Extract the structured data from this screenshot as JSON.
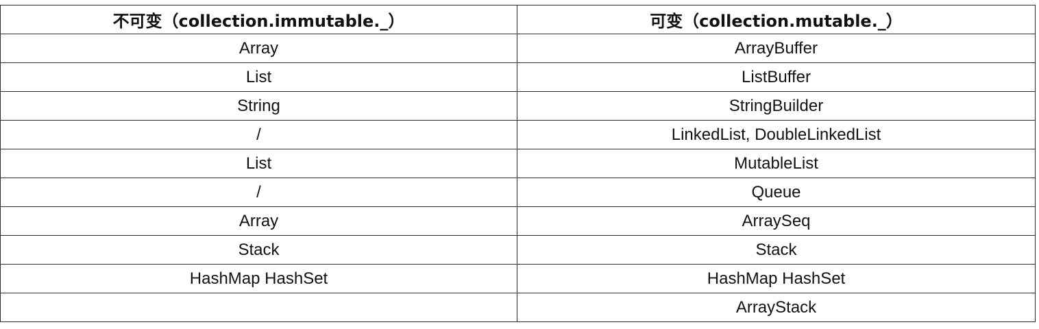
{
  "table": {
    "headers": [
      "不可变（collection.immutable._）",
      "可变（collection.mutable._）"
    ],
    "rows": [
      [
        "Array",
        "ArrayBuffer"
      ],
      [
        "List",
        "ListBuffer"
      ],
      [
        "String",
        "StringBuilder"
      ],
      [
        "/",
        "LinkedList, DoubleLinkedList"
      ],
      [
        "List",
        "MutableList"
      ],
      [
        "/",
        "Queue"
      ],
      [
        "Array",
        "ArraySeq"
      ],
      [
        "Stack",
        "Stack"
      ],
      [
        "HashMap HashSet",
        "HashMap HashSet"
      ],
      [
        "",
        "ArrayStack"
      ]
    ]
  }
}
